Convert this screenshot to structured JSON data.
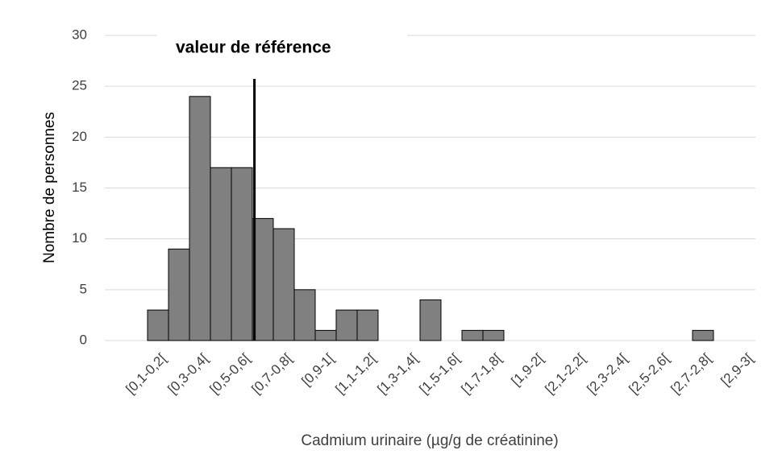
{
  "chart_data": {
    "type": "bar",
    "categories": [
      "[0,1-0,2[",
      null,
      "[0,3-0,4[",
      null,
      "[0,5-0,6[",
      null,
      "[0,7-0,8[",
      null,
      "[0,9-1[",
      null,
      "[1,1-1,2[",
      null,
      "[1,3-1,4[",
      null,
      "[1,5-1,6[",
      null,
      "[1,7-1,8[",
      null,
      "[1,9-2[",
      null,
      "[2,1-2,2[",
      null,
      "[2,3-2,4[",
      null,
      "[2,5-2,6[",
      null,
      "[2,7-2,8[",
      null,
      "[2,9-3["
    ],
    "values": [
      3,
      9,
      24,
      17,
      17,
      12,
      11,
      5,
      1,
      3,
      3,
      0,
      0,
      4,
      0,
      1,
      1,
      0,
      0,
      0,
      0,
      0,
      0,
      0,
      0,
      0,
      1,
      0,
      0
    ],
    "color": "#808080",
    "x_label": "Cadmium urinaire (µg/g de créatinine)",
    "y_label": "Nombre de personnes",
    "ylim": [
      0,
      30
    ],
    "yticks": [
      0,
      5,
      10,
      15,
      20,
      25,
      30
    ],
    "grid": true,
    "annotation": {
      "text": "valeur de référence",
      "x": 0.61
    }
  }
}
